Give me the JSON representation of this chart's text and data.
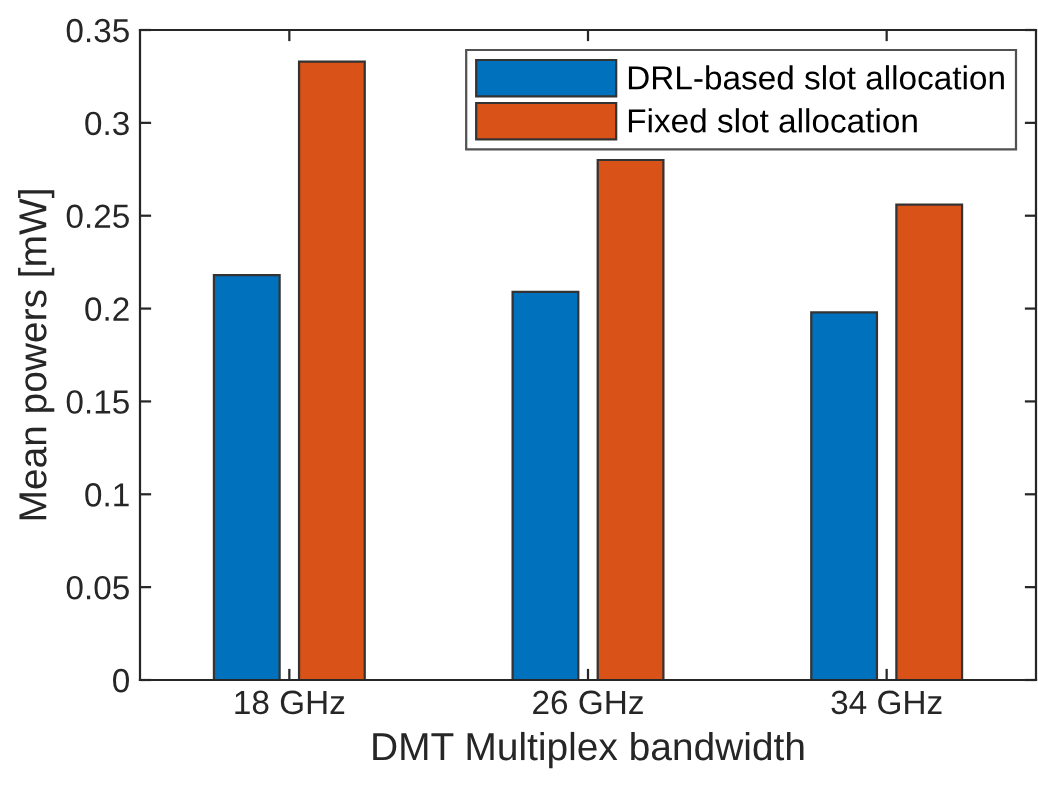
{
  "chart_data": {
    "type": "bar",
    "xlabel": "DMT Multiplex bandwidth",
    "ylabel": "Mean powers [mW]",
    "categories": [
      "18 GHz",
      "26 GHz",
      "34 GHz"
    ],
    "series": [
      {
        "name": "DRL-based slot allocation",
        "color": "#0072bd",
        "values": [
          0.218,
          0.209,
          0.198
        ]
      },
      {
        "name": "Fixed slot allocation",
        "color": "#d95319",
        "values": [
          0.333,
          0.28,
          0.256
        ]
      }
    ],
    "ylim": [
      0,
      0.35
    ],
    "yticks": [
      0,
      0.05,
      0.1,
      0.15,
      0.2,
      0.25,
      0.3,
      0.35
    ],
    "grid": false,
    "legend": "top right"
  }
}
